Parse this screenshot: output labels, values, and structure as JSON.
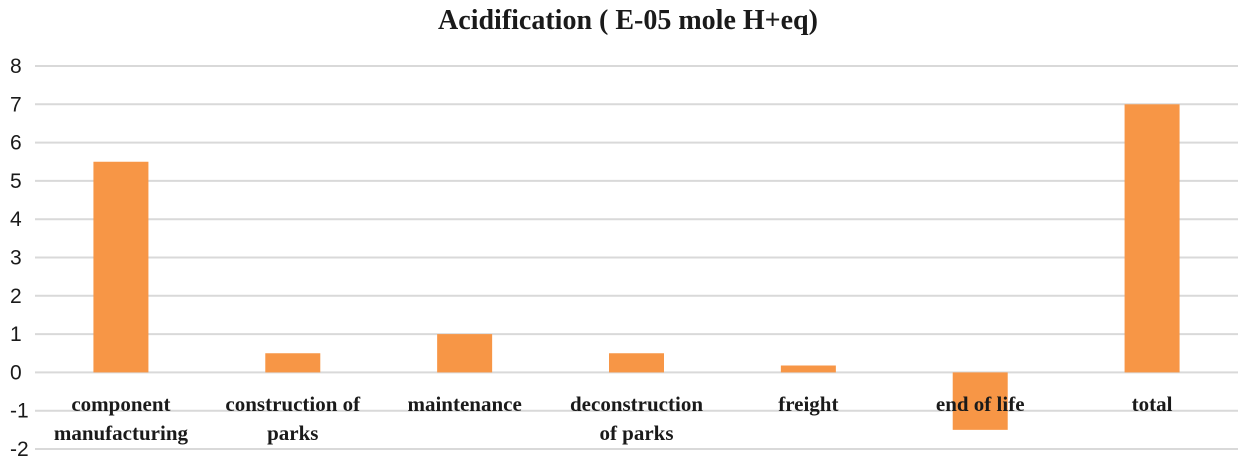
{
  "chart_data": {
    "type": "bar",
    "title": "Acidification ( E-05 mole H+eq)",
    "categories": [
      [
        "component",
        "manufacturing"
      ],
      [
        "construction of",
        "parks"
      ],
      [
        "maintenance"
      ],
      [
        "deconstruction",
        "of parks"
      ],
      [
        "freight"
      ],
      [
        "end of life"
      ],
      [
        "total"
      ]
    ],
    "values": [
      5.5,
      0.5,
      1.0,
      0.5,
      0.18,
      -1.5,
      7.0
    ],
    "ylim": [
      -2,
      8
    ],
    "yticks": [
      "-2",
      "-1",
      "0",
      "1",
      "2",
      "3",
      "4",
      "5",
      "6",
      "7",
      "8"
    ],
    "grid": true,
    "bar_color": "#f79646",
    "grid_color": "#d9d9d9"
  }
}
